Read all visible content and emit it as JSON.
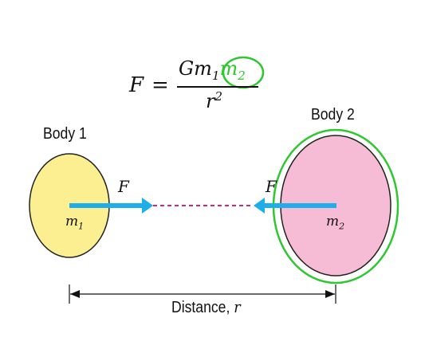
{
  "formula": {
    "lhs": "F",
    "equals": "=",
    "numerator_prefix": "Gm",
    "numerator_prefix_sub": "1",
    "numerator_highlight": "m",
    "numerator_highlight_sub": "2",
    "denominator": "r",
    "denominator_exp": "2"
  },
  "body1": {
    "label": "Body 1",
    "mass": "m",
    "mass_sub": "1",
    "force": "F"
  },
  "body2": {
    "label": "Body 2",
    "mass": "m",
    "mass_sub": "2",
    "force": "F"
  },
  "distance": {
    "label": "Distance, ",
    "symbol": "r"
  },
  "colors": {
    "body1_fill": "#fbef92",
    "body2_fill": "#f6bcd6",
    "force_arrow": "#1faee9",
    "dashed_line": "#d4286e",
    "highlight": "#2ec82e"
  }
}
